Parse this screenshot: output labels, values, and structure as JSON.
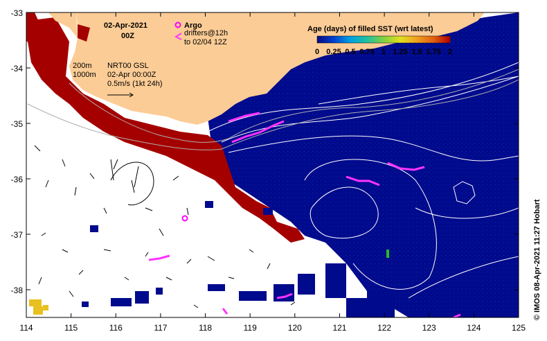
{
  "title": {
    "date": "02-Apr-2021",
    "time": "00Z"
  },
  "legend": {
    "argo_label": "Argo",
    "drifters_line1": "drifters@12h",
    "drifters_line2": "to 02/04 12Z",
    "isobath_1": "200m",
    "isobath_2": "1000m",
    "product": "NRT00 GSL",
    "product_time": "02-Apr 00:00Z",
    "vector_scale": "0.5m/s (1kt 24h)"
  },
  "colorbar": {
    "title": "Age (days) of filled SST (wrt latest)",
    "ticks": [
      "0",
      "0.25",
      "0.5",
      "0.75",
      "1",
      "1.25",
      "1.5",
      "1.75",
      "2"
    ],
    "colors": [
      "#0a0a80",
      "#0040d0",
      "#00a0e0",
      "#20c0a0",
      "#80d040",
      "#e0e020",
      "#f0a020",
      "#e06010",
      "#b00000"
    ]
  },
  "axes": {
    "x_ticks": [
      "114",
      "115",
      "116",
      "117",
      "118",
      "119",
      "120",
      "121",
      "122",
      "123",
      "124",
      "125"
    ],
    "y_ticks": [
      "-33",
      "-34",
      "-35",
      "-36",
      "-37",
      "-38"
    ]
  },
  "credit": "© IMOS 08-Apr-2021 11:27 Hobart",
  "colors": {
    "land": "#fccc96",
    "deep_water": "#000a8c",
    "old_sst": "#b00000",
    "argo": "#ff00ff",
    "contour": "#ffffff"
  }
}
